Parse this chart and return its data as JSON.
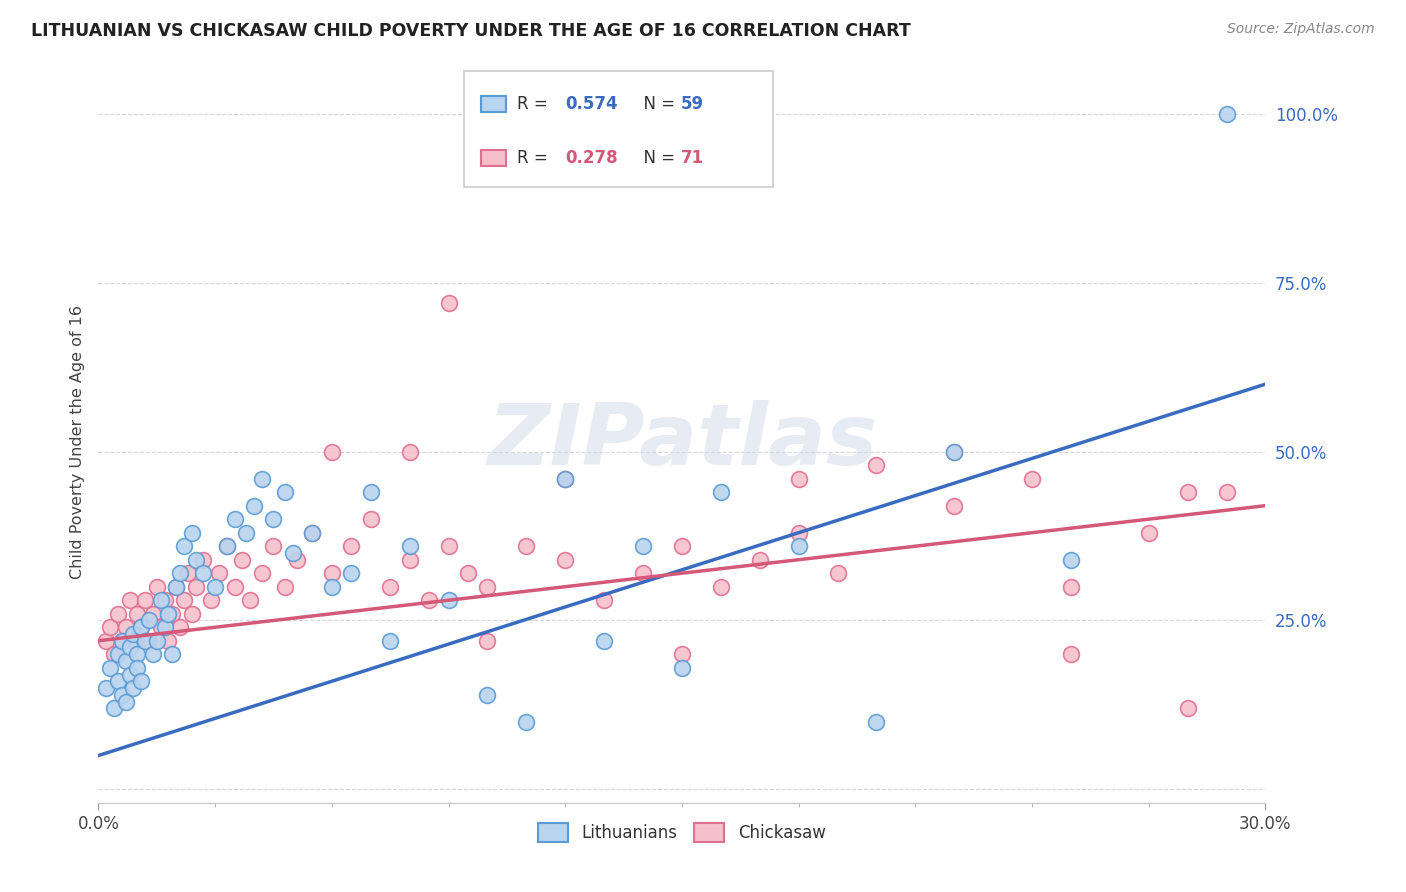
{
  "title": "LITHUANIAN VS CHICKASAW CHILD POVERTY UNDER THE AGE OF 16 CORRELATION CHART",
  "source": "Source: ZipAtlas.com",
  "ylabel": "Child Poverty Under the Age of 16",
  "background_color": "#ffffff",
  "grid_color": "#d8d8d8",
  "lit_color": "#5b9bd5",
  "lit_color_fill": "#b8d4ee",
  "chick_color": "#e07090",
  "chick_color_fill": "#f5c0cc",
  "lit_R": 0.574,
  "lit_N": 59,
  "chick_R": 0.278,
  "chick_N": 71,
  "lit_line_color": "#3a6bbf",
  "chick_line_color": "#d45878",
  "label_color": "#3a6bbf",
  "xmin": 0.0,
  "xmax": 0.3,
  "ymin": -0.02,
  "ymax": 1.05,
  "yticks": [
    0.0,
    0.25,
    0.5,
    0.75,
    1.0
  ],
  "ytick_labels": [
    "",
    "25.0%",
    "50.0%",
    "75.0%",
    "100.0%"
  ],
  "xticks": [
    0.0,
    0.3
  ],
  "xtick_labels": [
    "0.0%",
    "30.0%"
  ],
  "lit_line_y0": 0.05,
  "lit_line_y1": 0.6,
  "chick_line_y0": 0.22,
  "chick_line_y1": 0.42,
  "lit_scatter_x": [
    0.002,
    0.003,
    0.004,
    0.005,
    0.005,
    0.006,
    0.006,
    0.007,
    0.007,
    0.008,
    0.008,
    0.009,
    0.009,
    0.01,
    0.01,
    0.011,
    0.011,
    0.012,
    0.013,
    0.014,
    0.015,
    0.016,
    0.017,
    0.018,
    0.019,
    0.02,
    0.021,
    0.022,
    0.024,
    0.025,
    0.027,
    0.03,
    0.033,
    0.035,
    0.038,
    0.04,
    0.042,
    0.045,
    0.048,
    0.05,
    0.055,
    0.06,
    0.065,
    0.07,
    0.075,
    0.08,
    0.09,
    0.1,
    0.11,
    0.12,
    0.13,
    0.14,
    0.15,
    0.16,
    0.18,
    0.2,
    0.22,
    0.25,
    0.29
  ],
  "lit_scatter_y": [
    0.15,
    0.18,
    0.12,
    0.2,
    0.16,
    0.22,
    0.14,
    0.19,
    0.13,
    0.21,
    0.17,
    0.23,
    0.15,
    0.2,
    0.18,
    0.24,
    0.16,
    0.22,
    0.25,
    0.2,
    0.22,
    0.28,
    0.24,
    0.26,
    0.2,
    0.3,
    0.32,
    0.36,
    0.38,
    0.34,
    0.32,
    0.3,
    0.36,
    0.4,
    0.38,
    0.42,
    0.46,
    0.4,
    0.44,
    0.35,
    0.38,
    0.3,
    0.32,
    0.44,
    0.22,
    0.36,
    0.28,
    0.14,
    0.1,
    0.46,
    0.22,
    0.36,
    0.18,
    0.44,
    0.36,
    0.1,
    0.5,
    0.34,
    1.0
  ],
  "chick_scatter_x": [
    0.002,
    0.003,
    0.004,
    0.005,
    0.006,
    0.007,
    0.008,
    0.009,
    0.01,
    0.011,
    0.012,
    0.013,
    0.014,
    0.015,
    0.016,
    0.017,
    0.018,
    0.019,
    0.02,
    0.021,
    0.022,
    0.023,
    0.024,
    0.025,
    0.027,
    0.029,
    0.031,
    0.033,
    0.035,
    0.037,
    0.039,
    0.042,
    0.045,
    0.048,
    0.051,
    0.055,
    0.06,
    0.065,
    0.07,
    0.075,
    0.08,
    0.085,
    0.09,
    0.095,
    0.1,
    0.11,
    0.12,
    0.13,
    0.14,
    0.15,
    0.16,
    0.17,
    0.18,
    0.19,
    0.2,
    0.22,
    0.24,
    0.25,
    0.27,
    0.28,
    0.29,
    0.15,
    0.12,
    0.1,
    0.08,
    0.06,
    0.09,
    0.18,
    0.22,
    0.25,
    0.28
  ],
  "chick_scatter_y": [
    0.22,
    0.24,
    0.2,
    0.26,
    0.22,
    0.24,
    0.28,
    0.22,
    0.26,
    0.24,
    0.28,
    0.22,
    0.26,
    0.3,
    0.24,
    0.28,
    0.22,
    0.26,
    0.3,
    0.24,
    0.28,
    0.32,
    0.26,
    0.3,
    0.34,
    0.28,
    0.32,
    0.36,
    0.3,
    0.34,
    0.28,
    0.32,
    0.36,
    0.3,
    0.34,
    0.38,
    0.32,
    0.36,
    0.4,
    0.3,
    0.34,
    0.28,
    0.36,
    0.32,
    0.3,
    0.36,
    0.34,
    0.28,
    0.32,
    0.36,
    0.3,
    0.34,
    0.38,
    0.32,
    0.48,
    0.42,
    0.46,
    0.3,
    0.38,
    0.44,
    0.44,
    0.2,
    0.46,
    0.22,
    0.5,
    0.5,
    0.72,
    0.46,
    0.5,
    0.2,
    0.12
  ]
}
